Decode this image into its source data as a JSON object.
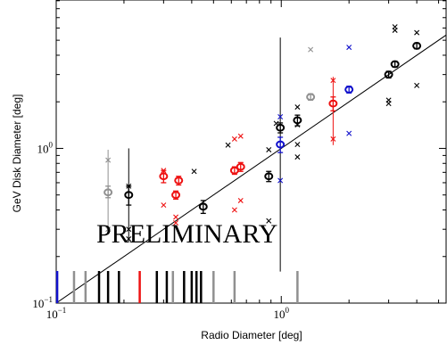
{
  "chart_data": {
    "type": "scatter",
    "xlabel": "Radio Diameter [deg]",
    "ylabel": "GeV Disk Diameter [deg]",
    "x_scale": "log",
    "y_scale": "log",
    "xlim": [
      0.1,
      5.4
    ],
    "ylim": [
      0.1,
      9.1
    ],
    "x_ticks": [
      {
        "value": 0.1,
        "base": "10",
        "exp": "−1"
      },
      {
        "value": 1,
        "base": "10",
        "exp": "0"
      }
    ],
    "y_ticks": [
      {
        "value": 0.1,
        "base": "10",
        "exp": "−1"
      },
      {
        "value": 1,
        "base": "10",
        "exp": "0"
      }
    ],
    "annotation": "PRELIMINARY",
    "reference_line": "y = x",
    "colors": {
      "black": "#000000",
      "red": "#ee1111",
      "blue": "#1111cc",
      "gray": "#909090"
    },
    "points": [
      {
        "x": 0.17,
        "y": 0.52,
        "yerr_lo": 0.04,
        "yerr_hi": 0.05,
        "color": "gray",
        "ext_lo": 0.3,
        "ext_hi": 0.98,
        "crosses": [
          0.84,
          0.3
        ]
      },
      {
        "x": 0.21,
        "y": 0.5,
        "yerr_lo": 0.07,
        "yerr_hi": 0.07,
        "color": "black",
        "ext_lo": 0.25,
        "ext_hi": 1.0,
        "crosses": [
          0.57,
          0.26
        ]
      },
      {
        "x": 0.3,
        "y": 0.66,
        "yerr_lo": 0.06,
        "yerr_hi": 0.06,
        "color": "red",
        "crosses": [
          0.72,
          0.43
        ]
      },
      {
        "x": 0.34,
        "y": 0.5,
        "yerr_lo": 0.03,
        "yerr_hi": 0.03,
        "color": "red",
        "crosses": [
          0.36,
          0.33
        ]
      },
      {
        "x": 0.35,
        "y": 0.62,
        "yerr_lo": 0.04,
        "yerr_hi": 0.04,
        "color": "red"
      },
      {
        "x": 0.45,
        "y": 0.42,
        "yerr_lo": 0.04,
        "yerr_hi": 0.04,
        "color": "black"
      },
      {
        "x": 0.62,
        "y": 0.72,
        "yerr_lo": 0.04,
        "yerr_hi": 0.04,
        "color": "red",
        "crosses": [
          1.15,
          0.4
        ]
      },
      {
        "x": 0.66,
        "y": 0.76,
        "yerr_lo": 0.05,
        "yerr_hi": 0.05,
        "color": "red",
        "crosses": [
          1.2,
          0.46
        ]
      },
      {
        "x": 0.88,
        "y": 0.66,
        "yerr_lo": 0.05,
        "yerr_hi": 0.05,
        "color": "black",
        "crosses": [
          0.98,
          0.34
        ]
      },
      {
        "x": 0.99,
        "y": 1.36,
        "yerr_lo": 0.1,
        "yerr_hi": 0.1,
        "color": "black",
        "ext_lo": 0.16,
        "ext_hi": 5.2
      },
      {
        "x": 0.99,
        "y": 1.06,
        "yerr_lo": 0.12,
        "yerr_hi": 0.12,
        "color": "blue",
        "crosses": [
          1.6,
          0.62
        ]
      },
      {
        "x": 1.18,
        "y": 1.52,
        "yerr_lo": 0.12,
        "yerr_hi": 0.12,
        "color": "black",
        "crosses": [
          1.85,
          1.42,
          1.06,
          0.88
        ]
      },
      {
        "x": 1.35,
        "y": 2.15,
        "yerr_lo": 0.1,
        "yerr_hi": 0.1,
        "color": "gray",
        "crosses": [
          4.35
        ]
      },
      {
        "x": 1.7,
        "y": 1.95,
        "yerr_lo": 0.2,
        "yerr_hi": 0.2,
        "color": "red",
        "ext_lo": 1.05,
        "ext_hi": 2.9,
        "crosses": [
          2.75,
          1.15
        ]
      },
      {
        "x": 2.0,
        "y": 2.4,
        "yerr_lo": 0.12,
        "yerr_hi": 0.12,
        "color": "blue",
        "crosses": [
          4.5,
          1.25
        ]
      },
      {
        "x": 3.0,
        "y": 3.0,
        "yerr_lo": 0.15,
        "yerr_hi": 0.15,
        "color": "black",
        "crosses": [
          2.05,
          1.95
        ]
      },
      {
        "x": 3.2,
        "y": 3.5,
        "yerr_lo": 0.15,
        "yerr_hi": 0.15,
        "color": "black",
        "crosses": [
          6.1,
          5.8
        ]
      },
      {
        "x": 4.0,
        "y": 4.6,
        "yerr_lo": 0.2,
        "yerr_hi": 0.2,
        "color": "black",
        "crosses": [
          5.6,
          2.55
        ]
      }
    ],
    "extra_markers": [
      {
        "x": 0.41,
        "y": 0.71,
        "color": "black"
      },
      {
        "x": 0.58,
        "y": 1.05,
        "color": "black"
      },
      {
        "x": 0.95,
        "y": 1.45,
        "color": "black"
      },
      {
        "x": 0.21,
        "y": 0.3,
        "color": "black"
      }
    ],
    "rug": [
      {
        "x": 0.101,
        "color": "blue"
      },
      {
        "x": 0.12,
        "color": "gray"
      },
      {
        "x": 0.135,
        "color": "gray"
      },
      {
        "x": 0.155,
        "color": "black"
      },
      {
        "x": 0.17,
        "color": "black"
      },
      {
        "x": 0.19,
        "color": "black"
      },
      {
        "x": 0.235,
        "color": "red"
      },
      {
        "x": 0.28,
        "color": "black"
      },
      {
        "x": 0.31,
        "color": "black"
      },
      {
        "x": 0.33,
        "color": "gray"
      },
      {
        "x": 0.37,
        "color": "black"
      },
      {
        "x": 0.4,
        "color": "black"
      },
      {
        "x": 0.42,
        "color": "black"
      },
      {
        "x": 0.44,
        "color": "black"
      },
      {
        "x": 0.5,
        "color": "gray"
      },
      {
        "x": 0.62,
        "color": "gray"
      },
      {
        "x": 1.18,
        "color": "gray"
      }
    ]
  }
}
